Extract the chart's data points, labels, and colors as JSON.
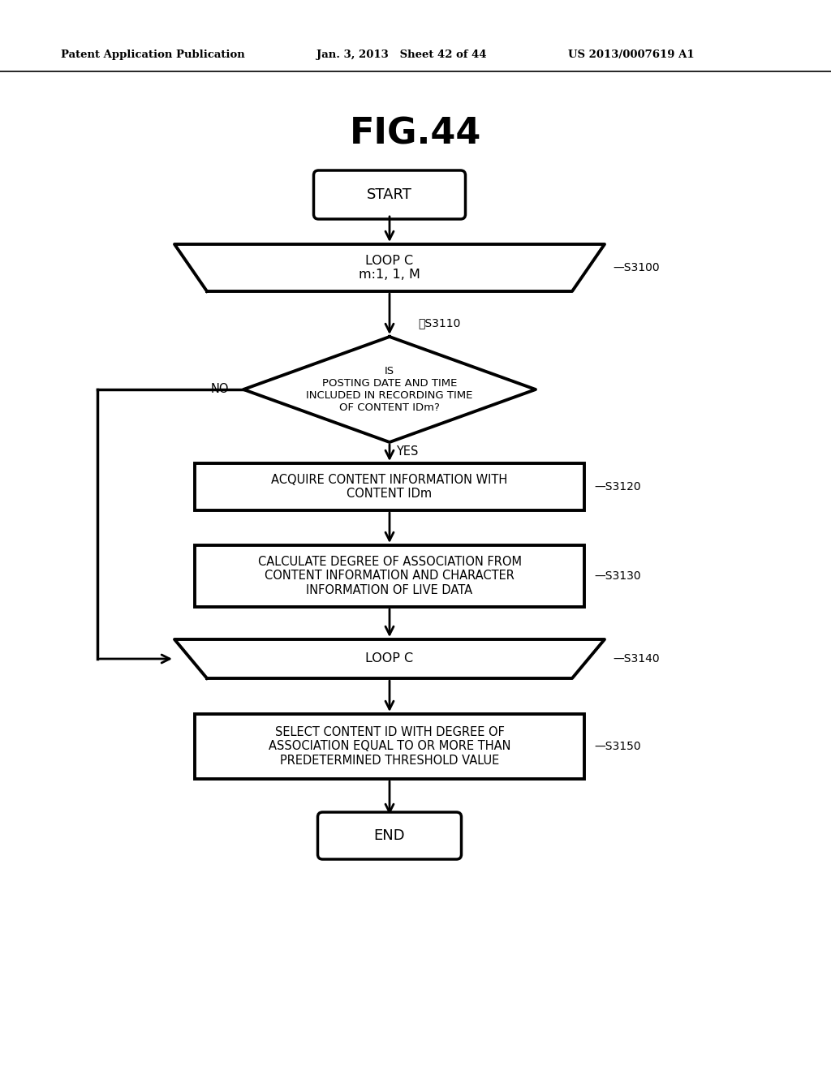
{
  "title": "FIG.44",
  "header_left": "Patent Application Publication",
  "header_mid": "Jan. 3, 2013   Sheet 42 of 44",
  "header_right": "US 2013/0007619 A1",
  "bg_color": "#ffffff",
  "start_label": "START",
  "end_label": "END",
  "loop1_label": "LOOP C\nm:1, 1, M",
  "loop1_tag": "S3100",
  "diamond_label": "IS\nPOSTING DATE AND TIME\nINCLUDED IN RECORDING TIME\nOF CONTENT IDm?",
  "diamond_tag": "S3110",
  "rect1_label": "ACQUIRE CONTENT INFORMATION WITH\nCONTENT IDm",
  "rect1_tag": "S3120",
  "rect2_label": "CALCULATE DEGREE OF ASSOCIATION FROM\nCONTENT INFORMATION AND CHARACTER\nINFORMATION OF LIVE DATA",
  "rect2_tag": "S3130",
  "loop2_label": "LOOP C",
  "loop2_tag": "S3140",
  "rect3_label": "SELECT CONTENT ID WITH DEGREE OF\nASSOCIATION EQUAL TO OR MORE THAN\nPREDETERMINED THRESHOLD VALUE",
  "rect3_tag": "S3150",
  "yes_label": "YES",
  "no_label": "NO"
}
